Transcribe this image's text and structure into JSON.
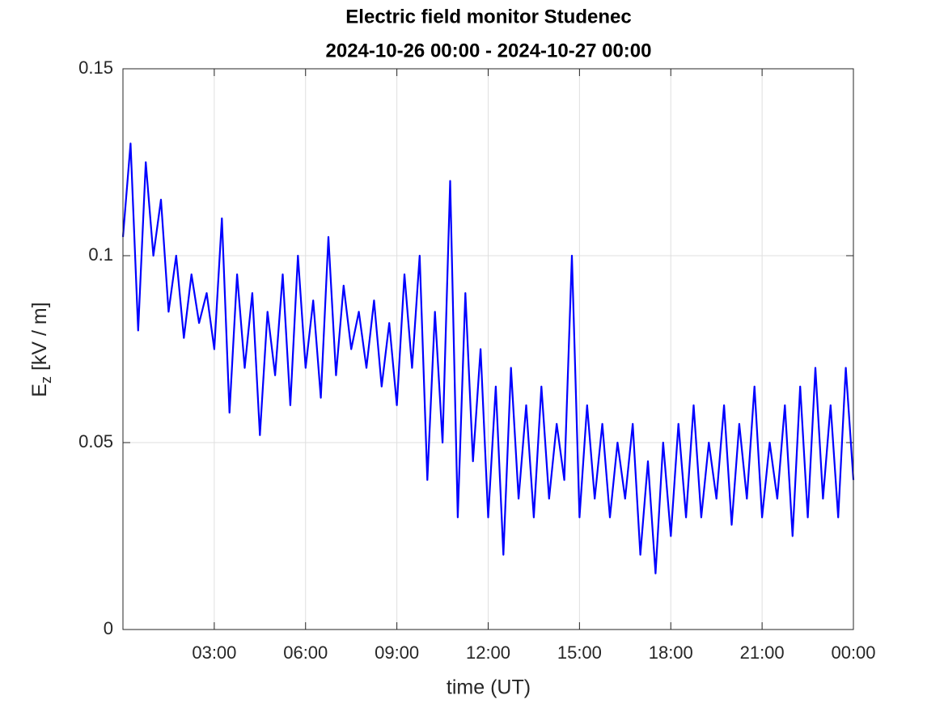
{
  "chart_data": {
    "type": "line",
    "title": [
      "Electric field monitor Studenec",
      "2024-10-26 00:00 - 2024-10-27 00:00"
    ],
    "xlabel": "time (UT)",
    "ylabel": [
      "E",
      "z",
      " [kV / m]"
    ],
    "x": [
      0,
      0.25,
      0.5,
      0.75,
      1,
      1.25,
      1.5,
      1.75,
      2,
      2.25,
      2.5,
      2.75,
      3,
      3.25,
      3.5,
      3.75,
      4,
      4.25,
      4.5,
      4.75,
      5,
      5.25,
      5.5,
      5.75,
      6,
      6.25,
      6.5,
      6.75,
      7,
      7.25,
      7.5,
      7.75,
      8,
      8.25,
      8.5,
      8.75,
      9,
      9.25,
      9.5,
      9.75,
      10,
      10.25,
      10.5,
      10.75,
      11,
      11.25,
      11.5,
      11.75,
      12,
      12.25,
      12.5,
      12.75,
      13,
      13.25,
      13.5,
      13.75,
      14,
      14.25,
      14.5,
      14.75,
      15,
      15.25,
      15.5,
      15.75,
      16,
      16.25,
      16.5,
      16.75,
      17,
      17.25,
      17.5,
      17.75,
      18,
      18.25,
      18.5,
      18.75,
      19,
      19.25,
      19.5,
      19.75,
      20,
      20.25,
      20.5,
      20.75,
      21,
      21.25,
      21.5,
      21.75,
      22,
      22.25,
      22.5,
      22.75,
      23,
      23.25,
      23.5,
      23.75,
      24
    ],
    "series": [
      {
        "name": "Ez",
        "color": "#0000ff",
        "values": [
          0.105,
          0.13,
          0.08,
          0.125,
          0.1,
          0.115,
          0.085,
          0.1,
          0.078,
          0.095,
          0.082,
          0.09,
          0.075,
          0.11,
          0.058,
          0.095,
          0.07,
          0.09,
          0.052,
          0.085,
          0.068,
          0.095,
          0.06,
          0.1,
          0.07,
          0.088,
          0.062,
          0.105,
          0.068,
          0.092,
          0.075,
          0.085,
          0.07,
          0.088,
          0.065,
          0.082,
          0.06,
          0.095,
          0.07,
          0.1,
          0.04,
          0.085,
          0.05,
          0.12,
          0.03,
          0.09,
          0.045,
          0.075,
          0.03,
          0.065,
          0.02,
          0.07,
          0.035,
          0.06,
          0.03,
          0.065,
          0.035,
          0.055,
          0.04,
          0.1,
          0.03,
          0.06,
          0.035,
          0.055,
          0.03,
          0.05,
          0.035,
          0.055,
          0.02,
          0.045,
          0.015,
          0.05,
          0.025,
          0.055,
          0.03,
          0.06,
          0.03,
          0.05,
          0.035,
          0.06,
          0.028,
          0.055,
          0.035,
          0.065,
          0.03,
          0.05,
          0.035,
          0.06,
          0.025,
          0.065,
          0.03,
          0.07,
          0.035,
          0.06,
          0.03,
          0.07,
          0.04
        ]
      }
    ],
    "xlim": [
      0,
      24
    ],
    "xticks": [
      {
        "value": 3,
        "label": "03:00"
      },
      {
        "value": 6,
        "label": "06:00"
      },
      {
        "value": 9,
        "label": "09:00"
      },
      {
        "value": 12,
        "label": "12:00"
      },
      {
        "value": 15,
        "label": "15:00"
      },
      {
        "value": 18,
        "label": "18:00"
      },
      {
        "value": 21,
        "label": "21:00"
      },
      {
        "value": 24,
        "label": "00:00"
      }
    ],
    "ylim": [
      0,
      0.15
    ],
    "yticks": [
      0,
      0.05,
      0.1,
      0.15
    ],
    "grid": true
  }
}
